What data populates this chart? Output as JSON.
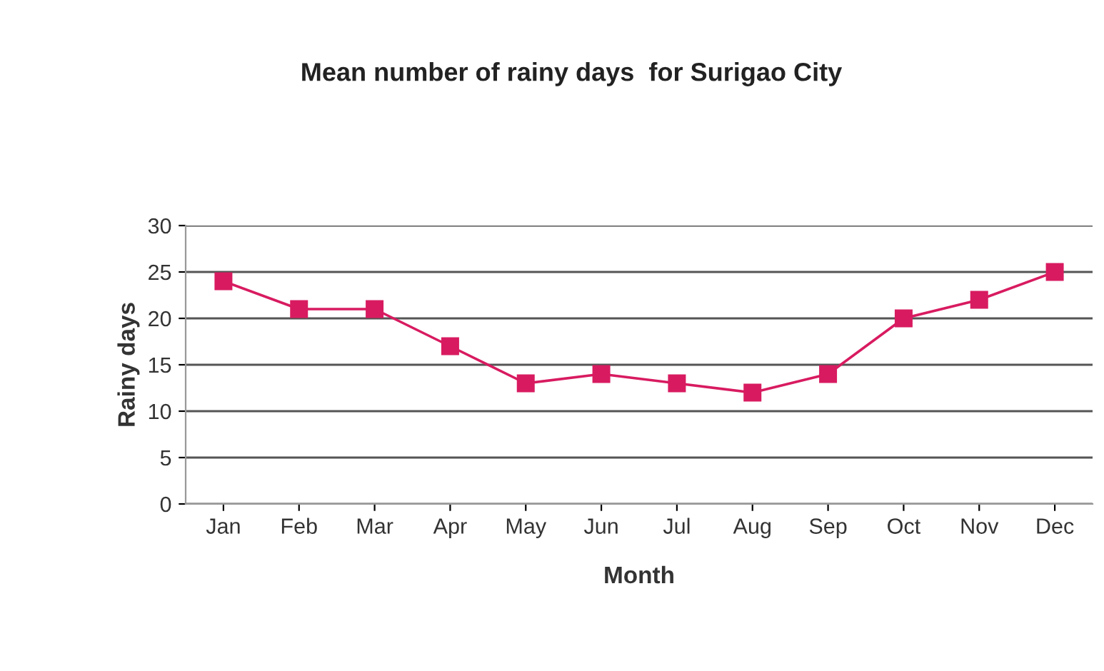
{
  "chart_data": {
    "type": "line",
    "title": "Mean number of rainy days  for Surigao City",
    "xlabel": "Month",
    "ylabel": "Rainy days",
    "categories": [
      "Jan",
      "Feb",
      "Mar",
      "Apr",
      "May",
      "Jun",
      "Jul",
      "Aug",
      "Sep",
      "Oct",
      "Nov",
      "Dec"
    ],
    "series": [
      {
        "color": "#d81b60",
        "values": [
          24,
          21,
          21,
          17,
          13,
          14,
          13,
          12,
          14,
          20,
          22,
          25
        ]
      }
    ],
    "ylim": [
      0,
      30
    ],
    "yticks": [
      0,
      5,
      10,
      15,
      20,
      25,
      30
    ],
    "grid": "y",
    "marker": "square",
    "line_style": "solid"
  }
}
